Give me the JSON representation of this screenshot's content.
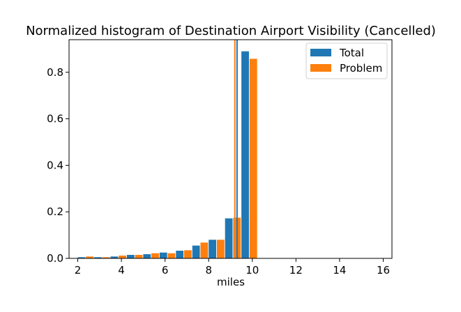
{
  "chart_data": {
    "type": "bar",
    "title": "Normalized histogram of Destination Airport Visibility (Cancelled)",
    "xlabel": "miles",
    "ylabel": "",
    "xlim": [
      1.6,
      16.4
    ],
    "ylim": [
      0,
      0.94
    ],
    "xticks": [
      2,
      4,
      6,
      8,
      10,
      12,
      14,
      16
    ],
    "yticks": [
      0.0,
      0.2,
      0.4,
      0.6,
      0.8
    ],
    "bin_width": 0.75,
    "bin_centers": [
      2.375,
      3.125,
      3.875,
      4.625,
      5.375,
      6.125,
      6.875,
      7.625,
      8.375,
      9.125,
      9.875
    ],
    "series": [
      {
        "name": "Total",
        "color": "#1f77b4",
        "values": [
          0.005,
          0.005,
          0.008,
          0.015,
          0.018,
          0.025,
          0.033,
          0.055,
          0.08,
          0.172,
          0.89
        ]
      },
      {
        "name": "Problem",
        "color": "#ff7f0e",
        "values": [
          0.008,
          0.005,
          0.012,
          0.015,
          0.022,
          0.022,
          0.035,
          0.068,
          0.08,
          0.175,
          0.858
        ]
      }
    ],
    "mean_lines": [
      {
        "series": "Total",
        "x": 9.3,
        "color": "#1f77b4"
      },
      {
        "series": "Problem",
        "x": 9.2,
        "color": "#ff7f0e"
      }
    ],
    "legend": {
      "placement": "top-right"
    },
    "grid": false
  }
}
